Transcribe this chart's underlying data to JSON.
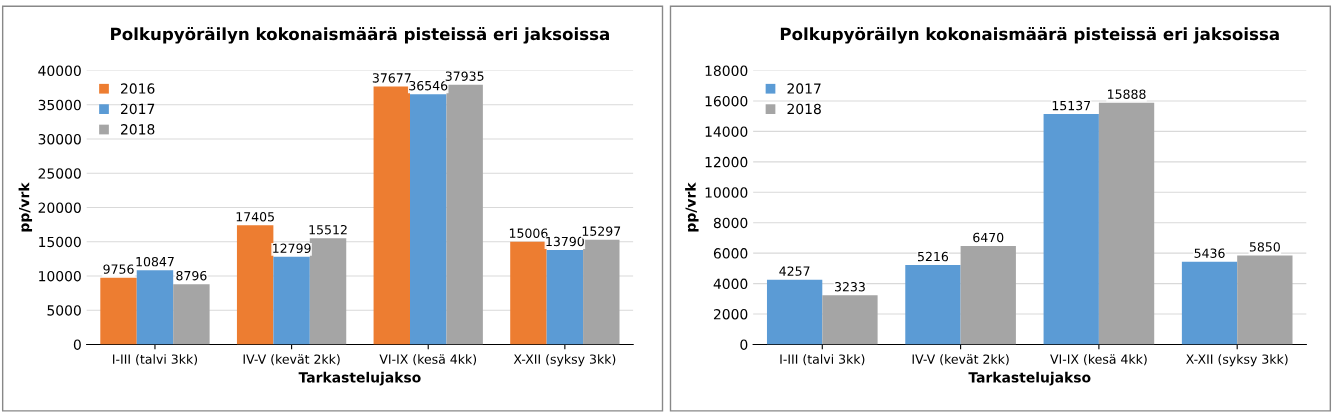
{
  "chart_data": [
    {
      "type": "bar",
      "title": "Polkupyöräilyn kokonaismäärä pisteissä eri jaksoissa",
      "xlabel": "Tarkastelujakso",
      "ylabel": "pp/vrk",
      "categories": [
        "I-III (talvi 3kk)",
        "IV-V (kevät 2kk)",
        "VI-IX (kesä 4kk)",
        "X-XII (syksy 3kk)"
      ],
      "series": [
        {
          "name": "2016",
          "color": "#ed7d31",
          "values": [
            9756,
            17405,
            37677,
            15006
          ]
        },
        {
          "name": "2017",
          "color": "#5b9bd5",
          "values": [
            10847,
            12799,
            36546,
            13790
          ]
        },
        {
          "name": "2018",
          "color": "#a5a5a5",
          "values": [
            8796,
            15512,
            37935,
            15297
          ]
        }
      ],
      "ylim": [
        0,
        40000
      ],
      "yticks": [
        0,
        5000,
        10000,
        15000,
        20000,
        25000,
        30000,
        35000,
        40000
      ],
      "grid": "y",
      "legend": "top left",
      "data_labels": true
    },
    {
      "type": "bar",
      "title": "Polkupyöräilyn kokonaismäärä pisteissä eri jaksoissa",
      "xlabel": "Tarkastelujakso",
      "ylabel": "pp/vrk",
      "categories": [
        "I-III (talvi 3kk)",
        "IV-V (kevät 2kk)",
        "VI-IX (kesä 4kk)",
        "X-XII (syksy 3kk)"
      ],
      "series": [
        {
          "name": "2017",
          "color": "#5b9bd5",
          "values": [
            4257,
            5216,
            15137,
            5436
          ]
        },
        {
          "name": "2018",
          "color": "#a5a5a5",
          "values": [
            3233,
            6470,
            15888,
            5850
          ]
        }
      ],
      "ylim": [
        0,
        18000
      ],
      "yticks": [
        0,
        2000,
        4000,
        6000,
        8000,
        10000,
        12000,
        14000,
        16000,
        18000
      ],
      "grid": "y",
      "legend": "top left",
      "data_labels": true
    }
  ]
}
